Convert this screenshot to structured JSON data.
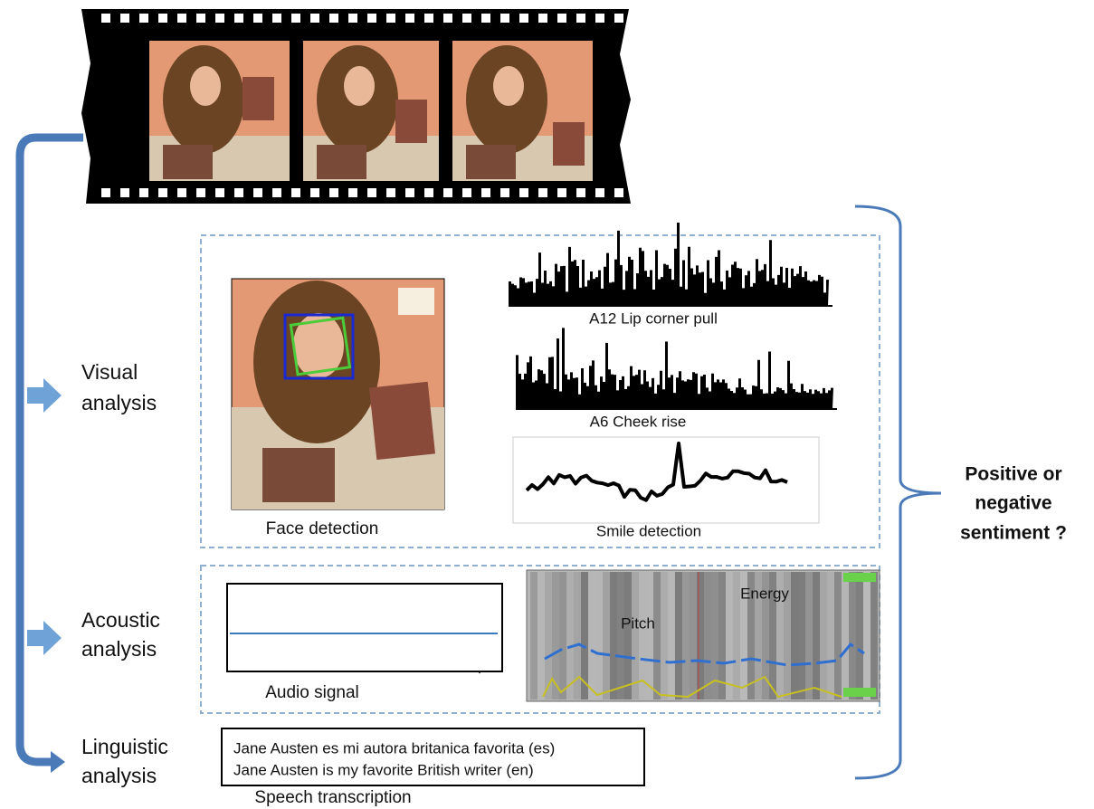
{
  "analysis_labels": [
    [
      "Visual",
      "analysis"
    ],
    [
      "Acoustic",
      "analysis"
    ],
    [
      "Linguistic",
      "analysis"
    ]
  ],
  "visual": {
    "face": "Face detection",
    "au12": "A12 Lip corner pull",
    "au6": "A6 Cheek rise",
    "smile": "Smile detection"
  },
  "acoustic": {
    "audio": "Audio signal",
    "pitch": "Pitch",
    "energy": "Energy"
  },
  "linguistic": {
    "transcription": [
      "Jane Austen es mi autora britanica favorita (es)",
      "Jane Austen is my favorite British writer (en)"
    ],
    "caption": "Speech transcription"
  },
  "output": [
    "Positive or",
    "negative",
    "sentiment ?"
  ]
}
